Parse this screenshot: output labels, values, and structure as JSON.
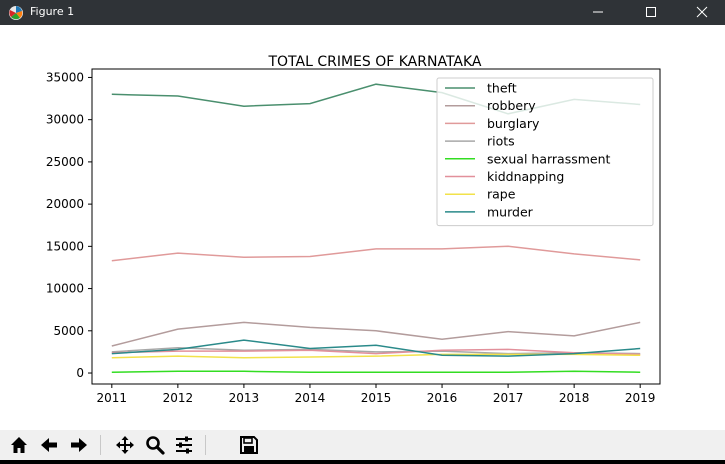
{
  "window": {
    "title": "Figure 1"
  },
  "chart_data": {
    "type": "line",
    "title": "TOTAL CRIMES OF KARNATAKA",
    "xlabel": "",
    "ylabel": "",
    "x": [
      2011,
      2012,
      2013,
      2014,
      2015,
      2016,
      2017,
      2018,
      2019
    ],
    "xticks": [
      "2011",
      "2012",
      "2013",
      "2014",
      "2015",
      "2016",
      "2017",
      "2018",
      "2019"
    ],
    "yticks": [
      0,
      5000,
      10000,
      15000,
      20000,
      25000,
      30000,
      35000
    ],
    "ytick_labels": [
      "0",
      "5000",
      "10000",
      "15000",
      "20000",
      "25000",
      "30000",
      "35000"
    ],
    "xlim": [
      2010.7,
      2019.3
    ],
    "ylim": [
      -1300,
      36000
    ],
    "grid": false,
    "legend": "top-right",
    "series": [
      {
        "name": "theft",
        "color": "#4a8f6e",
        "values": [
          33000,
          32800,
          31600,
          31900,
          34200,
          33200,
          30700,
          32400,
          31800
        ]
      },
      {
        "name": "robbery",
        "color": "#b39c9c",
        "values": [
          3200,
          5200,
          6000,
          5400,
          5000,
          4000,
          4900,
          4400,
          6000
        ]
      },
      {
        "name": "burglary",
        "color": "#e09a9a",
        "values": [
          13300,
          14200,
          13700,
          13800,
          14700,
          14700,
          15000,
          14100,
          13400
        ]
      },
      {
        "name": "riots",
        "color": "#a8a8a8",
        "values": [
          2500,
          3000,
          2700,
          2800,
          2500,
          2600,
          2300,
          2400,
          2300
        ]
      },
      {
        "name": "sexual harrassment",
        "color": "#33dd22",
        "values": [
          100,
          200,
          200,
          100,
          100,
          100,
          100,
          200,
          100
        ]
      },
      {
        "name": "kiddnapping",
        "color": "#e2909b",
        "values": [
          2400,
          2600,
          2600,
          2700,
          2300,
          2700,
          2800,
          2400,
          2200
        ]
      },
      {
        "name": "rape",
        "color": "#f2e24a",
        "values": [
          1800,
          2000,
          1800,
          1900,
          2000,
          2200,
          2200,
          2200,
          2100
        ]
      },
      {
        "name": "murder",
        "color": "#2a8a8a",
        "values": [
          2300,
          2800,
          3900,
          2900,
          3300,
          2100,
          2000,
          2300,
          2900
        ]
      }
    ]
  }
}
